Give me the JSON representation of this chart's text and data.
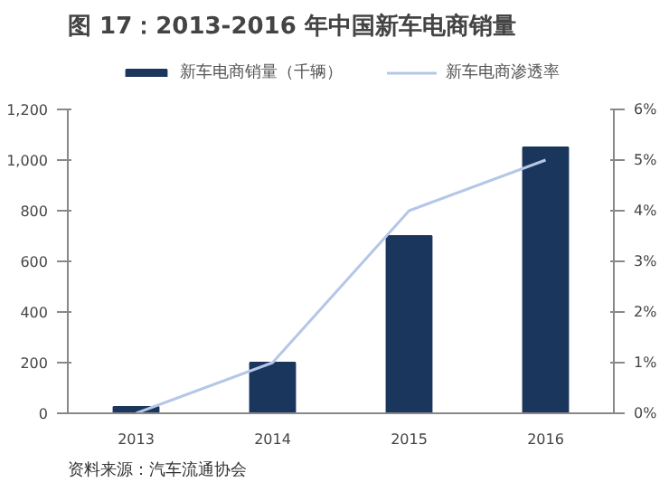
{
  "chart_data": {
    "type": "bar",
    "title": "图 17：2013-2016 年中国新车电商销量",
    "categories": [
      "2013",
      "2014",
      "2015",
      "2016"
    ],
    "series": [
      {
        "name": "新车电商销量（千辆）",
        "type": "bar",
        "color": "#1b365d",
        "values": [
          25,
          200,
          700,
          1050
        ]
      },
      {
        "name": "新车电商渗透率",
        "type": "line",
        "axis": "y2",
        "color": "#b4c7e7",
        "values": [
          0,
          1,
          4,
          5
        ]
      }
    ],
    "ylim": [
      0,
      1200
    ],
    "yticks": [
      0,
      200,
      400,
      600,
      800,
      {
        "value": 1000,
        "label": "1,000"
      },
      {
        "value": 1200,
        "label": "1,200"
      }
    ],
    "y2lim": [
      0,
      6
    ],
    "y2ticks": [
      {
        "value": 0,
        "label": "0%"
      },
      {
        "value": 1,
        "label": "1%"
      },
      {
        "value": 2,
        "label": "2%"
      },
      {
        "value": 3,
        "label": "3%"
      },
      {
        "value": 4,
        "label": "4%"
      },
      {
        "value": 5,
        "label": "5%"
      },
      {
        "value": 6,
        "label": "6%"
      }
    ],
    "legend": "top",
    "grid": false,
    "annotations": [
      "资料来源：汽车流通协会"
    ]
  }
}
